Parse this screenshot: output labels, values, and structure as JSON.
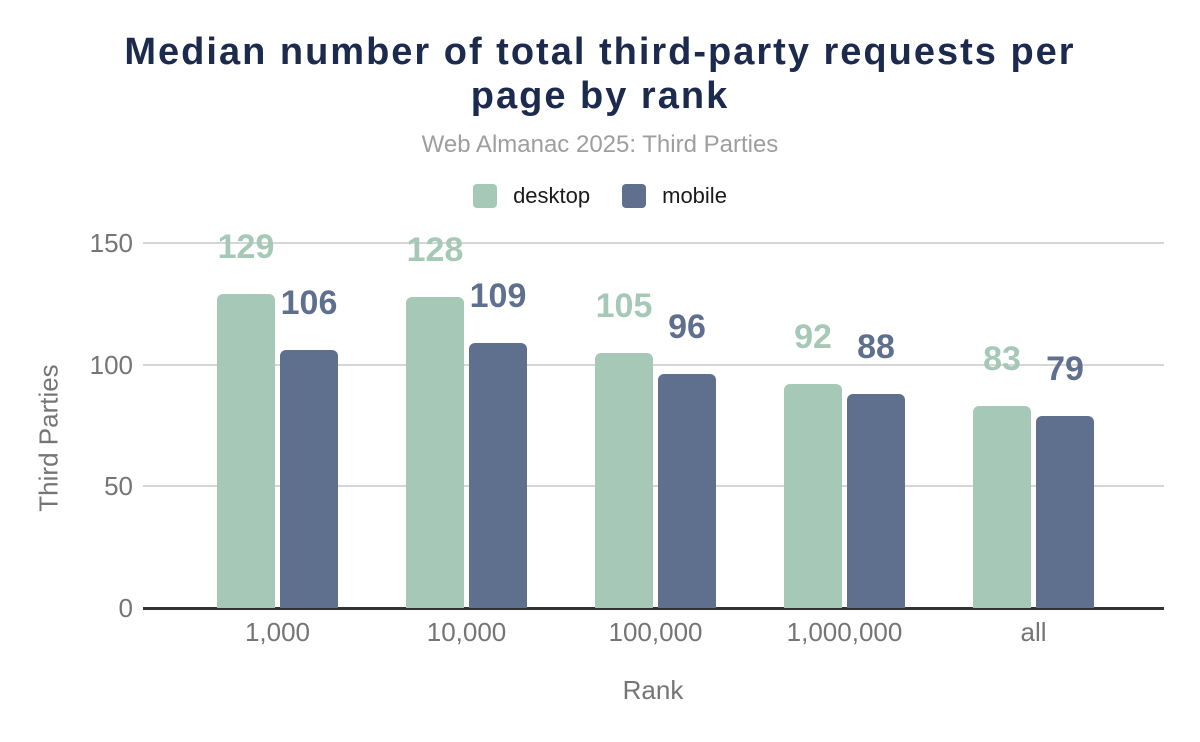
{
  "chart_data": {
    "type": "bar",
    "title": "Median number of total third-party requests per page by rank",
    "subtitle": "Web Almanac 2025: Third Parties",
    "xlabel": "Rank",
    "ylabel": "Third Parties",
    "categories": [
      "1,000",
      "10,000",
      "100,000",
      "1,000,000",
      "all"
    ],
    "series": [
      {
        "name": "desktop",
        "color": "#a6c8b7",
        "values": [
          129,
          128,
          105,
          92,
          83
        ]
      },
      {
        "name": "mobile",
        "color": "#5f708e",
        "values": [
          106,
          109,
          96,
          88,
          79
        ]
      }
    ],
    "ylim": [
      0,
      150
    ],
    "yticks": [
      0,
      50,
      100,
      150
    ],
    "grid": true,
    "legend_position": "top",
    "data_labels": true
  },
  "colors": {
    "title": "#1c2b4d",
    "subtitle": "#9e9e9e",
    "axis_text": "#757575",
    "gridline": "#d6d6d6",
    "baseline": "#333333",
    "background": "#ffffff"
  }
}
